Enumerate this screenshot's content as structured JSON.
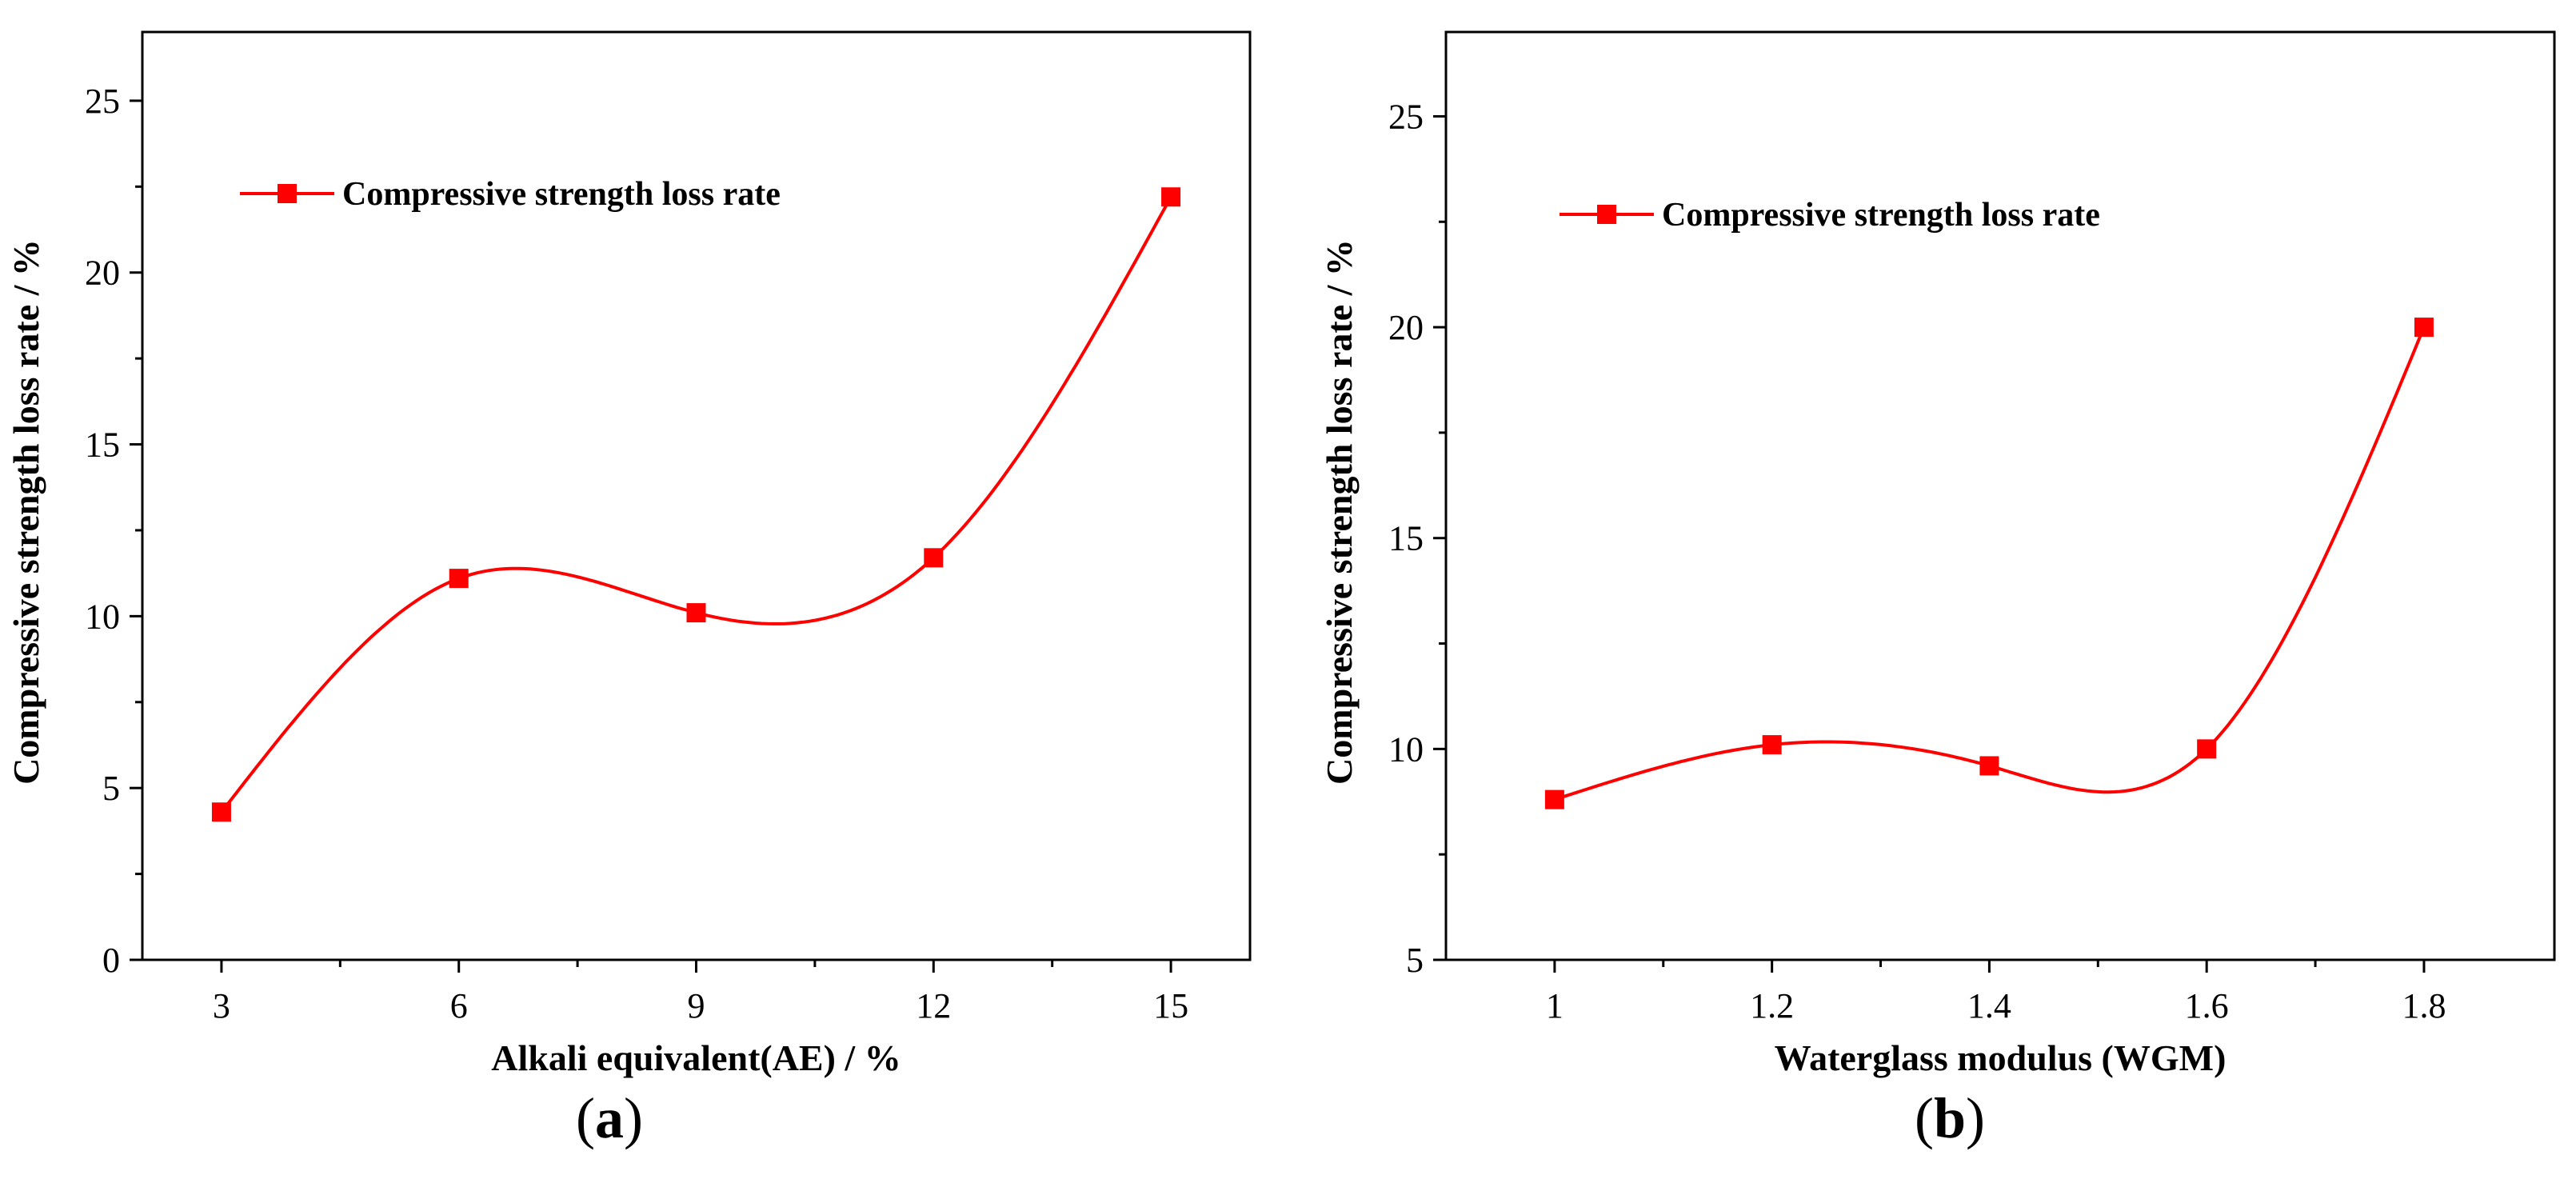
{
  "chart_data": [
    {
      "panel": "a",
      "type": "line",
      "title": "",
      "xlabel": "Alkali equivalent(AE) / %",
      "ylabel": "Compressive strength loss rate / %",
      "categories": [
        "3",
        "6",
        "9",
        "12",
        "15"
      ],
      "x": [
        3,
        6,
        9,
        12,
        15
      ],
      "xlim": [
        2,
        16
      ],
      "ylim": [
        0,
        27
      ],
      "yticks": [
        0,
        5,
        10,
        15,
        20,
        25
      ],
      "series": [
        {
          "name": "Compressive strength loss rate",
          "color": "#ff0000",
          "marker": "square",
          "values": [
            4.3,
            11.1,
            10.1,
            11.7,
            22.2
          ]
        }
      ],
      "legend": {
        "position": "top-left",
        "label": "Compressive strength loss rate"
      },
      "caption": {
        "open": "(",
        "letter": "a",
        "close": ")"
      }
    },
    {
      "panel": "b",
      "type": "line",
      "title": "",
      "xlabel": "Waterglass modulus (WGM)",
      "ylabel": "Compressive strength loss rate / %",
      "categories": [
        "1",
        "1.2",
        "1.4",
        "1.6",
        "1.8"
      ],
      "x": [
        1.0,
        1.2,
        1.4,
        1.6,
        1.8
      ],
      "xlim": [
        0.9,
        1.92
      ],
      "ylim": [
        5,
        27
      ],
      "yticks": [
        5,
        10,
        15,
        20,
        25
      ],
      "series": [
        {
          "name": "Compressive strength loss rate",
          "color": "#ff0000",
          "marker": "square",
          "values": [
            8.8,
            10.1,
            9.6,
            10.0,
            20.0
          ]
        }
      ],
      "legend": {
        "position": "top-left",
        "label": "Compressive strength loss rate"
      },
      "caption": {
        "open": "(",
        "letter": "b",
        "close": ")"
      }
    }
  ]
}
